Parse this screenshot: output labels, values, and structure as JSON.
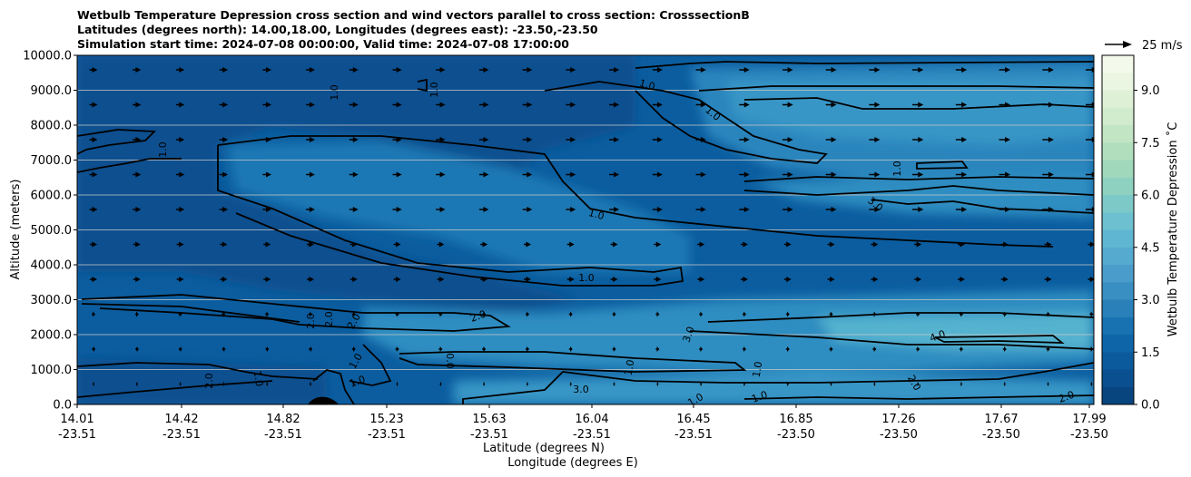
{
  "chart_data": {
    "type": "contourf",
    "title_lines": [
      "Wetbulb Temperature Depression cross section and wind vectors parallel to cross section: CrosssectionB",
      "Latitudes (degrees north): 14.00,18.00, Longitudes (degrees east): -23.50,-23.50",
      "Simulation start time: 2024-07-08 00:00:00, Valid time: 2024-07-08 17:00:00"
    ],
    "ylabel": "Altitude (meters)",
    "xlabel_lat": "Latitude (degrees N)",
    "xlabel_lon": "Longitude (degrees E)",
    "ylim": [
      0,
      10000
    ],
    "yticks": [
      "0.0",
      "1000.0",
      "2000.0",
      "3000.0",
      "4000.0",
      "5000.0",
      "6000.0",
      "7000.0",
      "8000.0",
      "9000.0",
      "10000.0"
    ],
    "xticks": [
      {
        "lat": "14.01",
        "lon": "-23.51"
      },
      {
        "lat": "14.42",
        "lon": "-23.51"
      },
      {
        "lat": "14.82",
        "lon": "-23.51"
      },
      {
        "lat": "15.23",
        "lon": "-23.51"
      },
      {
        "lat": "15.63",
        "lon": "-23.51"
      },
      {
        "lat": "16.04",
        "lon": "-23.51"
      },
      {
        "lat": "16.45",
        "lon": "-23.51"
      },
      {
        "lat": "16.85",
        "lon": "-23.50"
      },
      {
        "lat": "17.26",
        "lon": "-23.50"
      },
      {
        "lat": "17.67",
        "lon": "-23.50"
      },
      {
        "lat": "17.99",
        "lon": "-23.50"
      }
    ],
    "colorbar": {
      "label": "Wetbulb Temperature Depression $^\\circ$C",
      "display_label": "Wetbulb Temperature Depression ˚C",
      "range": [
        0,
        10
      ],
      "levels": 20,
      "ticks": [
        "0.0",
        "1.5",
        "3.0",
        "4.5",
        "6.0",
        "7.5",
        "9.0"
      ],
      "tick_values": [
        0,
        1.5,
        3.0,
        4.5,
        6.0,
        7.5,
        9.0
      ]
    },
    "quiver_key": {
      "label": "25 m/s",
      "value": 25
    },
    "contour_labels": [
      "1.0",
      "1.0",
      "1.0",
      "1.0",
      "1.0",
      "1.0",
      "1.0",
      "2.0",
      "2.0",
      "2.0",
      "2.0",
      "2.0",
      "3.0",
      "3.0",
      "3.0",
      "4.0",
      "0.0",
      "2.0",
      "1.0",
      "1.0",
      "1.0",
      "1.0",
      "1.0",
      "1.0",
      "2.0",
      "1.0",
      "1.0"
    ]
  }
}
